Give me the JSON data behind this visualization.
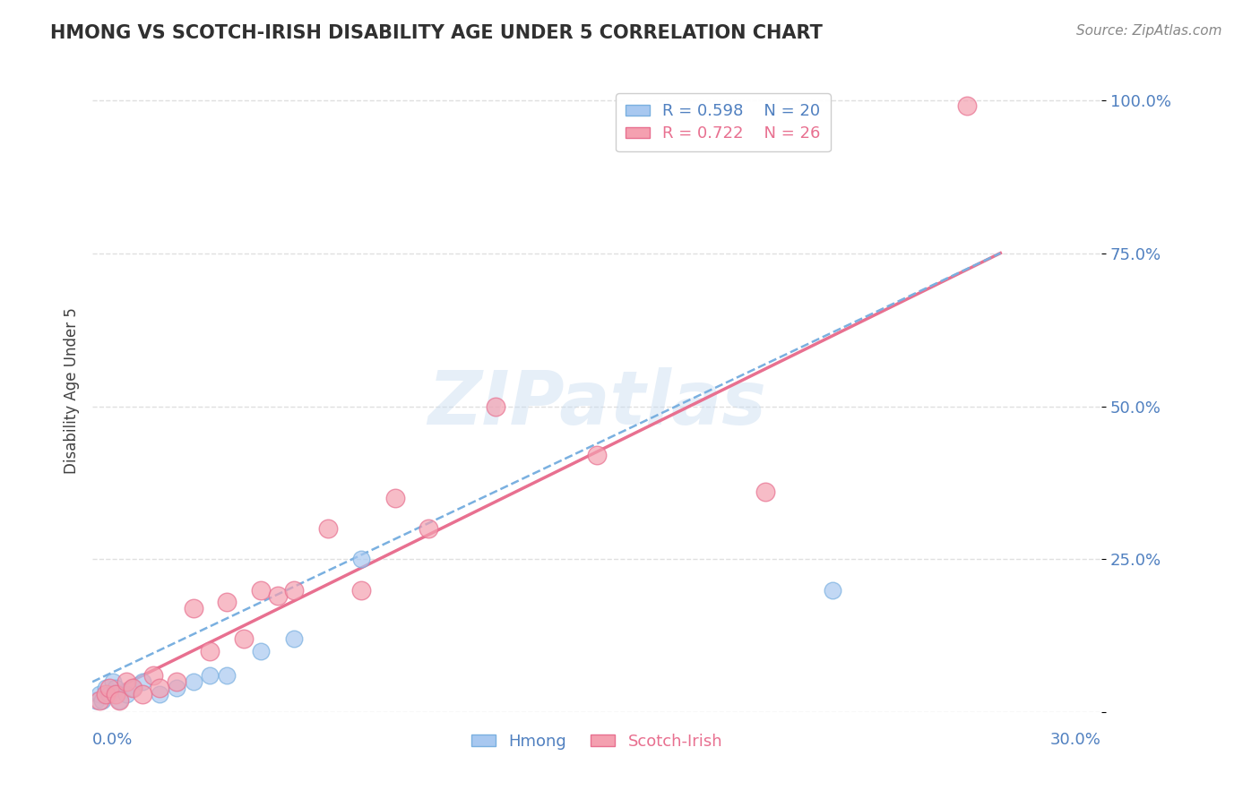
{
  "title": "HMONG VS SCOTCH-IRISH DISABILITY AGE UNDER 5 CORRELATION CHART",
  "source": "Source: ZipAtlas.com",
  "xlabel_bottom_left": "0.0%",
  "xlabel_bottom_right": "30.0%",
  "ylabel": "Disability Age Under 5",
  "y_ticks": [
    0.0,
    0.25,
    0.5,
    0.75,
    1.0
  ],
  "y_tick_labels": [
    "",
    "25.0%",
    "50.0%",
    "75.0%",
    "100.0%"
  ],
  "x_min": 0.0,
  "x_max": 0.3,
  "y_min": 0.0,
  "y_max": 1.05,
  "hmong_R": "0.598",
  "hmong_N": "20",
  "scotch_R": "0.722",
  "scotch_N": "26",
  "hmong_color": "#a8c8f0",
  "scotch_color": "#f4a0b0",
  "trend_hmong_color": "#7ab0e0",
  "trend_scotch_color": "#e87090",
  "legend_hmong_label": "Hmong",
  "legend_scotch_label": "Scotch-Irish",
  "watermark": "ZIPatlas",
  "background_color": "#ffffff",
  "grid_color": "#e0e0e0",
  "title_color": "#303030",
  "axis_label_color": "#5080c0",
  "hmong_points_x": [
    0.001,
    0.002,
    0.003,
    0.004,
    0.005,
    0.006,
    0.007,
    0.008,
    0.01,
    0.012,
    0.015,
    0.02,
    0.025,
    0.03,
    0.035,
    0.04,
    0.05,
    0.06,
    0.08,
    0.22
  ],
  "hmong_points_y": [
    0.02,
    0.03,
    0.02,
    0.04,
    0.03,
    0.05,
    0.04,
    0.02,
    0.03,
    0.04,
    0.05,
    0.03,
    0.04,
    0.05,
    0.06,
    0.06,
    0.1,
    0.12,
    0.25,
    0.2
  ],
  "scotch_points_x": [
    0.002,
    0.004,
    0.005,
    0.007,
    0.008,
    0.01,
    0.012,
    0.015,
    0.018,
    0.02,
    0.025,
    0.03,
    0.035,
    0.04,
    0.045,
    0.05,
    0.055,
    0.06,
    0.07,
    0.08,
    0.09,
    0.1,
    0.12,
    0.15,
    0.2,
    0.26
  ],
  "scotch_points_y": [
    0.02,
    0.03,
    0.04,
    0.03,
    0.02,
    0.05,
    0.04,
    0.03,
    0.06,
    0.04,
    0.05,
    0.17,
    0.1,
    0.18,
    0.12,
    0.2,
    0.19,
    0.2,
    0.3,
    0.2,
    0.35,
    0.3,
    0.5,
    0.42,
    0.36,
    0.99
  ],
  "hmong_trend_x": [
    0.0,
    0.27
  ],
  "hmong_trend_y": [
    0.05,
    0.75
  ],
  "scotch_trend_x": [
    0.0,
    0.27
  ],
  "scotch_trend_y": [
    0.02,
    0.75
  ]
}
